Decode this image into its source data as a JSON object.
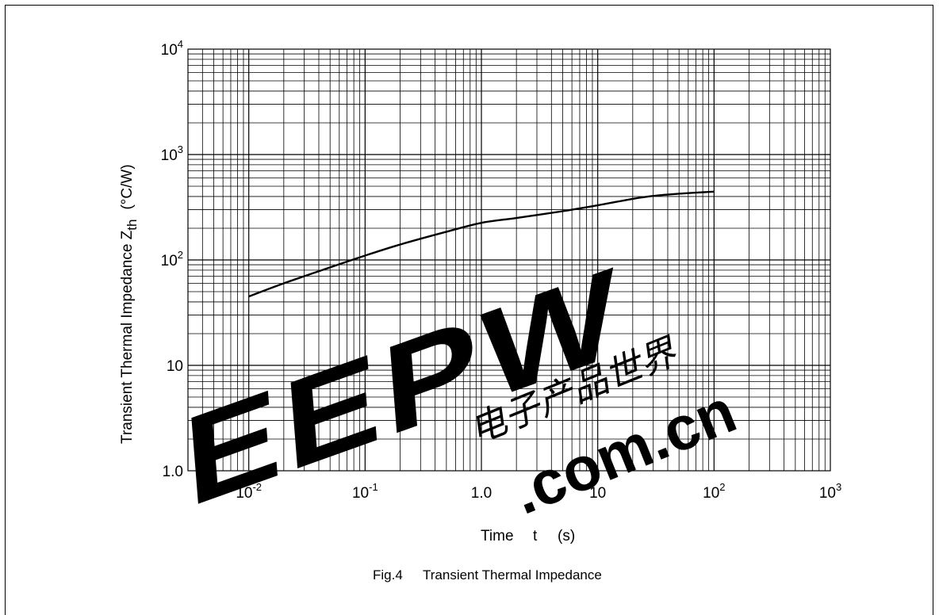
{
  "chart_data": {
    "type": "line",
    "xlabel_parts": [
      "Time",
      "t",
      "(s)"
    ],
    "ylabel": {
      "text": "Transient Thermal Impedance Z",
      "sub": "th",
      "unit": "(°C/W)"
    },
    "caption": {
      "fig": "Fig.4",
      "title": "Transient Thermal Impedance"
    },
    "x_scale": "log",
    "y_scale": "log",
    "xlim": [
      0.003,
      1000
    ],
    "ylim": [
      1,
      10000
    ],
    "grid": true,
    "x_ticks": [
      {
        "value": 0.01,
        "base": "10",
        "exp": "-2"
      },
      {
        "value": 0.1,
        "base": "10",
        "exp": "-1"
      },
      {
        "value": 1,
        "base": "1.0",
        "exp": ""
      },
      {
        "value": 10,
        "base": "10",
        "exp": ""
      },
      {
        "value": 100,
        "base": "10",
        "exp": "2"
      },
      {
        "value": 1000,
        "base": "10",
        "exp": "3"
      }
    ],
    "y_ticks": [
      {
        "value": 1,
        "base": "1.0",
        "exp": ""
      },
      {
        "value": 10,
        "base": "10",
        "exp": ""
      },
      {
        "value": 100,
        "base": "10",
        "exp": "2"
      },
      {
        "value": 1000,
        "base": "10",
        "exp": "3"
      },
      {
        "value": 10000,
        "base": "10",
        "exp": "4"
      }
    ],
    "series": [
      {
        "x": [
          0.01,
          0.02,
          0.05,
          0.1,
          0.2,
          0.5,
          1,
          2,
          5,
          10,
          20,
          30,
          50,
          100
        ],
        "y": [
          45,
          60,
          85,
          110,
          140,
          185,
          225,
          250,
          290,
          330,
          380,
          405,
          425,
          445
        ]
      }
    ]
  },
  "watermark": {
    "brand": "EEPW",
    "domain": ".com.cn",
    "chinese": "电子产品世界"
  },
  "colors": {
    "watermark_red": "#e8202a",
    "watermark_grey": "#bdbdbd"
  }
}
